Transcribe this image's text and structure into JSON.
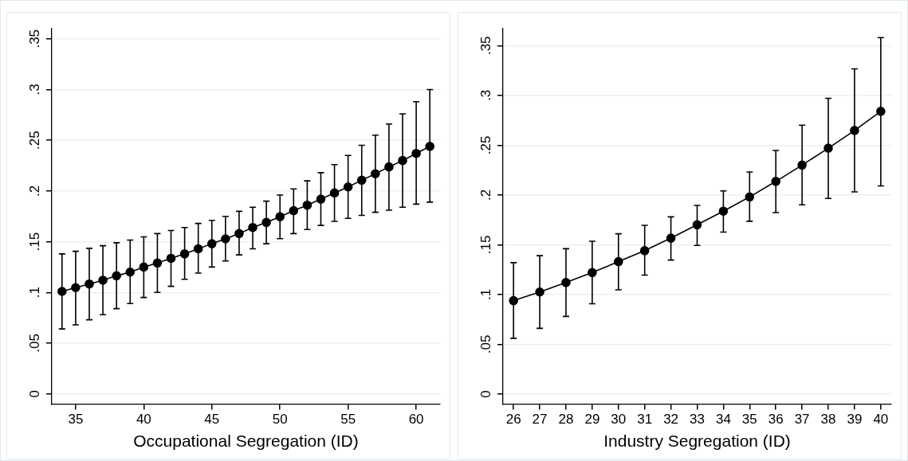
{
  "chart_data": [
    {
      "type": "line",
      "xlabel": "Occupational Segregation (ID)",
      "marker": "circle",
      "grid": "y",
      "color": "#000000",
      "x": [
        34,
        35,
        36,
        37,
        38,
        39,
        40,
        41,
        42,
        43,
        44,
        45,
        46,
        47,
        48,
        49,
        50,
        51,
        52,
        53,
        54,
        55,
        56,
        57,
        58,
        59,
        60,
        61
      ],
      "values": [
        0.101,
        0.1047,
        0.1083,
        0.112,
        0.1164,
        0.12,
        0.125,
        0.129,
        0.1336,
        0.138,
        0.143,
        0.148,
        0.1528,
        0.158,
        0.164,
        0.169,
        0.1746,
        0.1806,
        0.186,
        0.192,
        0.198,
        0.204,
        0.2106,
        0.217,
        0.2237,
        0.23,
        0.237,
        0.244
      ],
      "errors": [
        [
          0.064,
          0.138
        ],
        [
          0.068,
          0.1405
        ],
        [
          0.073,
          0.1435
        ],
        [
          0.078,
          0.146
        ],
        [
          0.084,
          0.149
        ],
        [
          0.089,
          0.1516
        ],
        [
          0.095,
          0.1547
        ],
        [
          0.1,
          0.158
        ],
        [
          0.106,
          0.161
        ],
        [
          0.113,
          0.164
        ],
        [
          0.119,
          0.168
        ],
        [
          0.125,
          0.171
        ],
        [
          0.131,
          0.175
        ],
        [
          0.137,
          0.18
        ],
        [
          0.143,
          0.184
        ],
        [
          0.148,
          0.19
        ],
        [
          0.153,
          0.196
        ],
        [
          0.158,
          0.202
        ],
        [
          0.162,
          0.21
        ],
        [
          0.166,
          0.218
        ],
        [
          0.17,
          0.226
        ],
        [
          0.173,
          0.235
        ],
        [
          0.176,
          0.245
        ],
        [
          0.179,
          0.255
        ],
        [
          0.181,
          0.266
        ],
        [
          0.184,
          0.276
        ],
        [
          0.187,
          0.288
        ],
        [
          0.189,
          0.3
        ]
      ],
      "xlim": [
        33.25,
        61.75
      ],
      "xticks": [
        35,
        40,
        45,
        50,
        55,
        60
      ],
      "ylim": [
        -0.01,
        0.36
      ],
      "yticks": [
        0,
        {
          "value": 0.05,
          "label": ".05"
        },
        {
          "value": 0.1,
          "label": ".1"
        },
        {
          "value": 0.15,
          "label": ".15"
        },
        {
          "value": 0.2,
          "label": ".2"
        },
        {
          "value": 0.25,
          "label": ".25"
        },
        {
          "value": 0.3,
          "label": ".3"
        },
        {
          "value": 0.35,
          "label": ".35"
        }
      ]
    },
    {
      "type": "line",
      "xlabel": "Industry Segregation (ID)",
      "marker": "circle",
      "grid": "y",
      "color": "#000000",
      "x": [
        26,
        27,
        28,
        29,
        30,
        31,
        32,
        33,
        34,
        35,
        36,
        37,
        38,
        39,
        40
      ],
      "values": [
        0.0938,
        0.1025,
        0.112,
        0.122,
        0.133,
        0.144,
        0.1566,
        0.17,
        0.1837,
        0.198,
        0.2136,
        0.23,
        0.247,
        0.2647,
        0.284
      ],
      "errors": [
        [
          0.056,
          0.132
        ],
        [
          0.066,
          0.139
        ],
        [
          0.078,
          0.146
        ],
        [
          0.0907,
          0.1535
        ],
        [
          0.1047,
          0.161
        ],
        [
          0.1195,
          0.1695
        ],
        [
          0.1346,
          0.178
        ],
        [
          0.1493,
          0.1895
        ],
        [
          0.1627,
          0.204
        ],
        [
          0.1736,
          0.223
        ],
        [
          0.1823,
          0.2446
        ],
        [
          0.19,
          0.27
        ],
        [
          0.1965,
          0.297
        ],
        [
          0.203,
          0.3266
        ],
        [
          0.209,
          0.358
        ]
      ],
      "xlim": [
        25.6,
        40.4
      ],
      "xticks": [
        26,
        27,
        28,
        29,
        30,
        31,
        32,
        33,
        34,
        35,
        36,
        37,
        38,
        39,
        40
      ],
      "ylim": [
        -0.01,
        0.367
      ],
      "yticks": [
        0,
        {
          "value": 0.05,
          "label": ".05"
        },
        {
          "value": 0.1,
          "label": ".1"
        },
        {
          "value": 0.15,
          "label": ".15"
        },
        {
          "value": 0.2,
          "label": ".2"
        },
        {
          "value": 0.25,
          "label": ".25"
        },
        {
          "value": 0.3,
          "label": ".3"
        },
        {
          "value": 0.35,
          "label": ".35"
        }
      ]
    }
  ]
}
